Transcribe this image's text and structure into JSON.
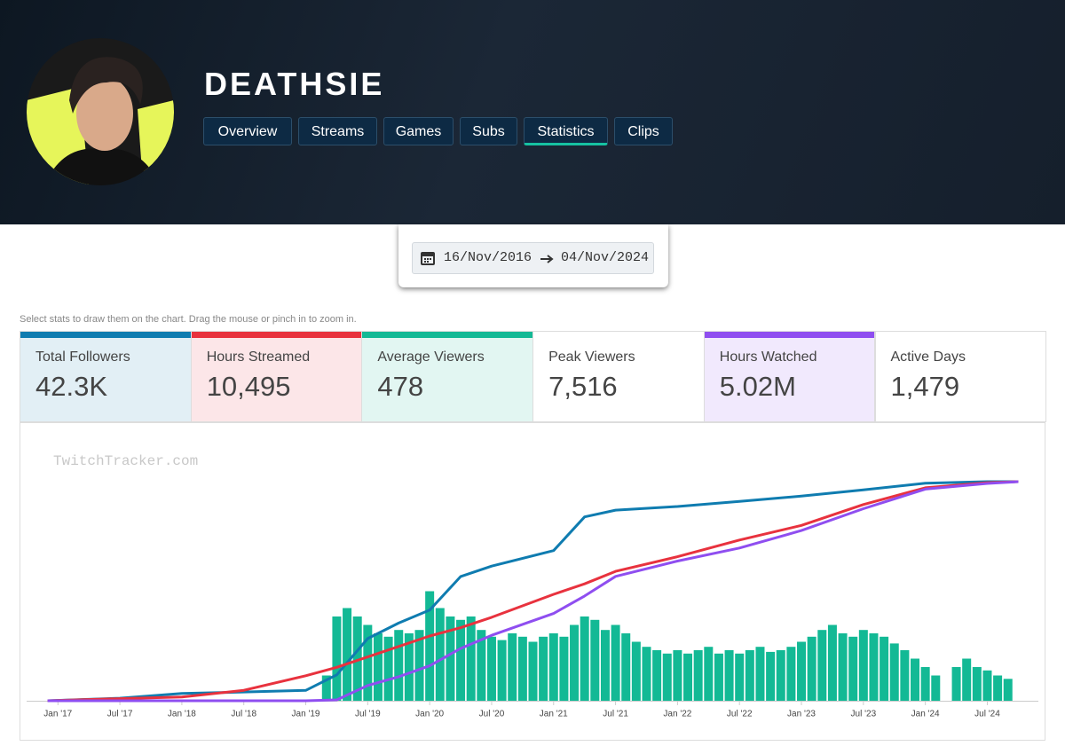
{
  "profile": {
    "name": "DEATHSIE",
    "tabs": [
      "Overview",
      "Streams",
      "Games",
      "Subs",
      "Statistics",
      "Clips"
    ],
    "active_tab": 4
  },
  "date_range": {
    "from": "16/Nov/2016",
    "to": "04/Nov/2024"
  },
  "hint": "Select stats to draw them on the chart. Drag the mouse or pinch in to zoom in.",
  "watermark": "TwitchTracker.com",
  "extra_stats": [
    {
      "name": "Peak Viewers",
      "total": "7,516"
    },
    {
      "name": "Active Days",
      "total": "1,479"
    }
  ],
  "chart_data": {
    "type": "line",
    "xlim": [
      "2016-11",
      "2024-11"
    ],
    "xticks": [
      {
        "value": "2017-01",
        "label": "Jan '17"
      },
      {
        "value": "2017-07",
        "label": "Jul '17"
      },
      {
        "value": "2018-01",
        "label": "Jan '18"
      },
      {
        "value": "2018-07",
        "label": "Jul '18"
      },
      {
        "value": "2019-01",
        "label": "Jan '19"
      },
      {
        "value": "2019-07",
        "label": "Jul '19"
      },
      {
        "value": "2020-01",
        "label": "Jan '20"
      },
      {
        "value": "2020-07",
        "label": "Jul '20"
      },
      {
        "value": "2021-01",
        "label": "Jan '21"
      },
      {
        "value": "2021-07",
        "label": "Jul '21"
      },
      {
        "value": "2022-01",
        "label": "Jan '22"
      },
      {
        "value": "2022-07",
        "label": "Jul '22"
      },
      {
        "value": "2023-01",
        "label": "Jan '23"
      },
      {
        "value": "2023-07",
        "label": "Jul '23"
      },
      {
        "value": "2024-01",
        "label": "Jan '24"
      },
      {
        "value": "2024-07",
        "label": "Jul '24"
      }
    ],
    "x": [
      "2016-12",
      "2017-07",
      "2018-01",
      "2018-07",
      "2019-01",
      "2019-04",
      "2019-07",
      "2019-10",
      "2020-01",
      "2020-04",
      "2020-07",
      "2021-01",
      "2021-04",
      "2021-07",
      "2022-01",
      "2022-07",
      "2023-01",
      "2023-07",
      "2024-01",
      "2024-07",
      "2024-10"
    ],
    "series": [
      {
        "name": "Total Followers",
        "total": "42.3K",
        "color": "#0f7cb0",
        "values": [
          0,
          500,
          1400,
          1700,
          2000,
          5000,
          12000,
          15000,
          17500,
          24000,
          26000,
          29000,
          35500,
          36800,
          37500,
          38500,
          39500,
          40700,
          42000,
          42300,
          42300
        ]
      },
      {
        "name": "Hours Streamed",
        "total": "10,495",
        "color": "#e8323e",
        "values": [
          0,
          100,
          180,
          500,
          1200,
          1600,
          2100,
          2600,
          3100,
          3500,
          4000,
          5100,
          5600,
          6200,
          6900,
          7700,
          8400,
          9400,
          10200,
          10450,
          10495
        ]
      },
      {
        "name": "Average Viewers",
        "total": "478",
        "color": "#13b995",
        "type": "bar",
        "x": [
          "2019-03",
          "2019-04",
          "2019-05",
          "2019-06",
          "2019-07",
          "2019-08",
          "2019-09",
          "2019-10",
          "2019-11",
          "2019-12",
          "2020-01",
          "2020-02",
          "2020-03",
          "2020-04",
          "2020-05",
          "2020-06",
          "2020-07",
          "2020-08",
          "2020-09",
          "2020-10",
          "2020-11",
          "2020-12",
          "2021-01",
          "2021-02",
          "2021-03",
          "2021-04",
          "2021-05",
          "2021-06",
          "2021-07",
          "2021-08",
          "2021-09",
          "2021-10",
          "2021-11",
          "2021-12",
          "2022-01",
          "2022-02",
          "2022-03",
          "2022-04",
          "2022-05",
          "2022-06",
          "2022-07",
          "2022-08",
          "2022-09",
          "2022-10",
          "2022-11",
          "2022-12",
          "2023-01",
          "2023-02",
          "2023-03",
          "2023-04",
          "2023-05",
          "2023-06",
          "2023-07",
          "2023-08",
          "2023-09",
          "2023-10",
          "2023-11",
          "2023-12",
          "2024-01",
          "2024-02",
          "2024-03",
          "2024-04",
          "2024-05",
          "2024-06",
          "2024-07",
          "2024-08",
          "2024-09"
        ],
        "values": [
          150,
          500,
          550,
          500,
          450,
          400,
          380,
          420,
          400,
          420,
          650,
          550,
          500,
          480,
          500,
          420,
          380,
          360,
          400,
          380,
          350,
          380,
          400,
          380,
          450,
          500,
          480,
          420,
          450,
          400,
          350,
          320,
          300,
          280,
          300,
          280,
          300,
          320,
          280,
          300,
          280,
          300,
          320,
          290,
          300,
          320,
          350,
          380,
          420,
          450,
          400,
          380,
          420,
          400,
          380,
          340,
          300,
          250,
          200,
          150,
          0,
          200,
          250,
          200,
          180,
          150,
          130
        ]
      },
      {
        "name": "Hours Watched",
        "total": "5.02M",
        "color": "#8f4ef0",
        "values": [
          0,
          0,
          0,
          0,
          0,
          20000,
          350000,
          550000,
          800000,
          1200000,
          1500000,
          2000000,
          2400000,
          2850000,
          3200000,
          3500000,
          3900000,
          4400000,
          4850000,
          4980000,
          5020000
        ]
      }
    ]
  }
}
